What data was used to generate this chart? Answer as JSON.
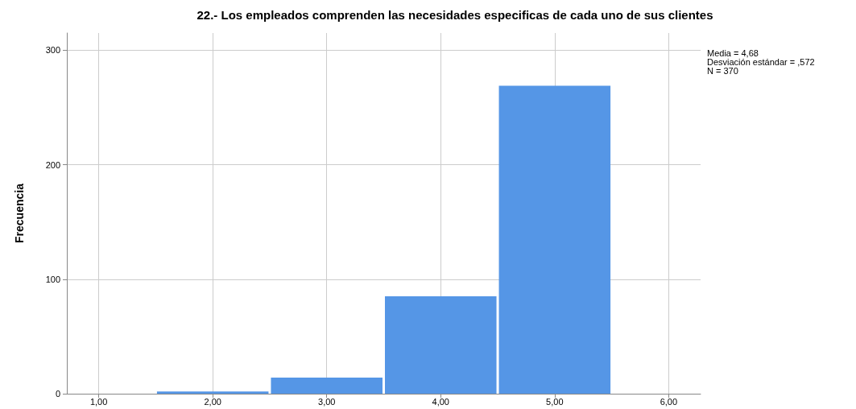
{
  "chart_data": {
    "type": "histogram",
    "title": "22.- Los empleados comprenden las necesidades especificas de cada uno de sus clientes",
    "ylabel": "Frecuencia",
    "bins": [
      1.5,
      2.5,
      3.5,
      4.5,
      5.5
    ],
    "values": [
      2,
      14,
      85,
      269
    ],
    "color": "#5596e6",
    "xlim": [
      0.72,
      6.28
    ],
    "xticks": [
      {
        "value": 1,
        "label": "1,00"
      },
      {
        "value": 2,
        "label": "2,00"
      },
      {
        "value": 3,
        "label": "3,00"
      },
      {
        "value": 4,
        "label": "4,00"
      },
      {
        "value": 5,
        "label": "5,00"
      },
      {
        "value": 6,
        "label": "6,00"
      }
    ],
    "ylim": [
      0,
      315
    ],
    "yticks": [
      0,
      100,
      200,
      300
    ],
    "grid": true,
    "annotations": [
      "Media = 4,68",
      "Desviación estándar = ,572",
      "N = 370"
    ]
  }
}
